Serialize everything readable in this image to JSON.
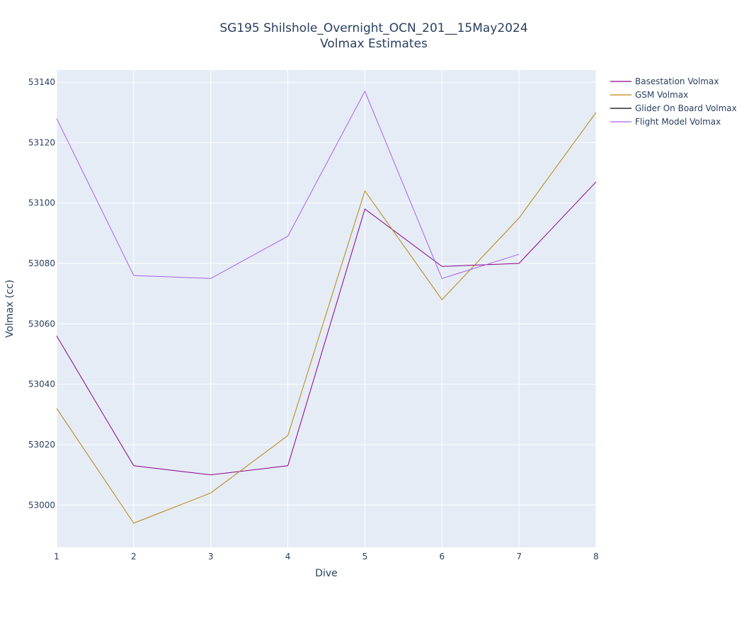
{
  "chart_data": {
    "type": "line",
    "title": "SG195 Shilshole_Overnight_OCN_201__15May2024",
    "subtitle": "Volmax Estimates",
    "xlabel": "Dive",
    "ylabel": "Volmax (cc)",
    "xlim": [
      1,
      8
    ],
    "ylim": [
      52986,
      53144
    ],
    "xticks": [
      1,
      2,
      3,
      4,
      5,
      6,
      7,
      8
    ],
    "yticks": [
      53000,
      53020,
      53040,
      53060,
      53080,
      53100,
      53120,
      53140
    ],
    "grid": true,
    "legend_position": "top-right",
    "series": [
      {
        "name": "Basestation Volmax",
        "color": "#8b008b",
        "x": [
          1,
          2,
          3,
          4,
          5,
          6,
          7,
          8
        ],
        "values": [
          53056,
          53013,
          53010,
          53013,
          53098,
          53079,
          53080,
          53107
        ]
      },
      {
        "name": "GSM Volmax",
        "color": "#b8860b",
        "x": [
          1,
          2,
          3,
          4,
          5,
          6,
          7,
          8
        ],
        "values": [
          53032,
          52994,
          53004,
          53023,
          53104,
          53068,
          53095,
          53130
        ]
      },
      {
        "name": "Glider On Board Volmax",
        "color": "#000000",
        "x": [],
        "values": []
      },
      {
        "name": "Flight Model Volmax",
        "color": "#a960ee",
        "x": [
          1,
          2,
          3,
          4,
          5,
          6,
          7
        ],
        "values": [
          53128,
          53076,
          53075,
          53089,
          53137,
          53075,
          53083
        ]
      }
    ]
  },
  "colors": {
    "plot_background": "#e5ecf6",
    "grid": "#ffffff",
    "text": "#2a3f5f"
  }
}
